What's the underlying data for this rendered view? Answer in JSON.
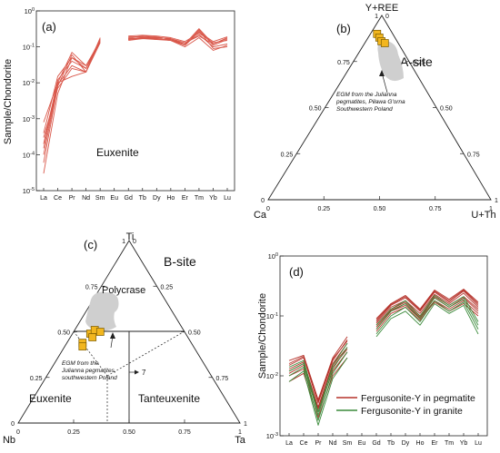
{
  "chart_data": [
    {
      "type": "line",
      "panel_label": "(a)",
      "ylabel": "Sample/Chondorite",
      "annotation": "Euxenite",
      "categories": [
        "La",
        "Ce",
        "Pr",
        "Nd",
        "Sm",
        "Eu",
        "Gd",
        "Tb",
        "Dy",
        "Ho",
        "Er",
        "Tm",
        "Yb",
        "Lu"
      ],
      "yscale": "log",
      "ylim": [
        1e-05,
        1
      ],
      "ytick_labels": [
        "10^-5",
        "10^-4",
        "10^-3",
        "10^-2",
        "10^-1",
        "10^0"
      ],
      "series": [
        {
          "values": [
            3e-05,
            0.005,
            0.05,
            0.03,
            0.14,
            null,
            0.16,
            0.17,
            0.16,
            0.15,
            0.12,
            0.3,
            0.11,
            0.16
          ]
        },
        {
          "values": [
            6e-05,
            0.008,
            0.06,
            0.02,
            0.15,
            null,
            0.17,
            0.18,
            0.17,
            0.15,
            0.11,
            0.26,
            0.14,
            0.19
          ]
        },
        {
          "values": [
            0.0001,
            0.009,
            0.03,
            0.02,
            0.16,
            null,
            0.18,
            0.2,
            0.19,
            0.16,
            0.12,
            0.22,
            0.1,
            0.12
          ]
        },
        {
          "values": [
            0.0002,
            0.012,
            0.04,
            0.025,
            0.17,
            null,
            0.19,
            0.19,
            0.18,
            0.17,
            0.13,
            0.2,
            0.12,
            0.17
          ]
        },
        {
          "values": [
            0.0004,
            0.015,
            0.05,
            0.025,
            0.14,
            null,
            0.16,
            0.18,
            0.16,
            0.16,
            0.11,
            0.28,
            0.09,
            0.1
          ]
        },
        {
          "values": [
            0.0008,
            0.01,
            0.015,
            0.02,
            0.13,
            null,
            0.15,
            0.17,
            0.17,
            0.15,
            0.1,
            0.18,
            0.08,
            0.11
          ]
        },
        {
          "values": [
            0.0003,
            0.007,
            0.025,
            0.02,
            0.18,
            null,
            0.2,
            0.21,
            0.2,
            0.18,
            0.14,
            0.24,
            0.13,
            0.15
          ]
        },
        {
          "values": [
            0.00015,
            0.01,
            0.07,
            0.03,
            0.15,
            null,
            0.17,
            0.18,
            0.18,
            0.17,
            0.12,
            0.32,
            0.12,
            0.18
          ]
        }
      ]
    },
    {
      "type": "ternary",
      "panel_label": "(b)",
      "title": "A-site",
      "vertices": {
        "top": "Y+REE",
        "left": "Ca",
        "right": "U+Th"
      },
      "tick_labels": [
        "0",
        "0.25",
        "0.50",
        "0.75",
        "1"
      ],
      "annotation": [
        "EGM from the Julianna",
        "pegmatites, Piława G'orna",
        "Southwestern Poland"
      ],
      "points": [
        {
          "top": 0.9,
          "left": 0.07,
          "right": 0.03
        },
        {
          "top": 0.88,
          "left": 0.07,
          "right": 0.05
        },
        {
          "top": 0.86,
          "left": 0.07,
          "right": 0.07
        },
        {
          "top": 0.85,
          "left": 0.06,
          "right": 0.09
        }
      ]
    },
    {
      "type": "ternary",
      "panel_label": "(c)",
      "title": "B-site",
      "vertices": {
        "top": "Ti",
        "left": "Nb",
        "right": "Ta"
      },
      "tick_labels": [
        "0",
        "0.25",
        "0.50",
        "0.75",
        "1"
      ],
      "fields": [
        "Polycrase",
        "Euxenite",
        "Tanteuxenite"
      ],
      "annotation": [
        "EGM from the",
        "Julianna pegmatites,",
        "southwestern Poland"
      ],
      "arrow_label": "7",
      "points": [
        {
          "top": 0.49,
          "left": 0.43,
          "right": 0.08
        },
        {
          "top": 0.51,
          "left": 0.4,
          "right": 0.09
        },
        {
          "top": 0.47,
          "left": 0.43,
          "right": 0.1
        },
        {
          "top": 0.5,
          "left": 0.38,
          "right": 0.12
        },
        {
          "top": 0.44,
          "left": 0.49,
          "right": 0.07
        },
        {
          "top": 0.42,
          "left": 0.5,
          "right": 0.08
        }
      ]
    },
    {
      "type": "line",
      "panel_label": "(d)",
      "ylabel": "Sample/Chondorite",
      "categories": [
        "La",
        "Ce",
        "Pr",
        "Nd",
        "Sm",
        "Eu",
        "Gd",
        "Tb",
        "Dy",
        "Ho",
        "Er",
        "Tm",
        "Yb",
        "Lu"
      ],
      "yscale": "log",
      "ylim": [
        0.001,
        1
      ],
      "ytick_labels": [
        "10^-3",
        "10^-2",
        "10^-1",
        "10^0"
      ],
      "legend": [
        "Fergusonite-Y in pegmatite",
        "Fergusonite-Y in granite"
      ],
      "legend_position": "bottom-right",
      "series": [
        {
          "name": "Fergusonite-Y in pegmatite",
          "group": "pegmatite",
          "values": [
            0.012,
            0.016,
            0.003,
            0.015,
            0.03,
            null,
            0.07,
            0.13,
            0.17,
            0.1,
            0.21,
            0.15,
            0.21,
            0.13
          ]
        },
        {
          "group": "pegmatite",
          "values": [
            0.015,
            0.02,
            0.0035,
            0.018,
            0.04,
            null,
            0.08,
            0.15,
            0.2,
            0.12,
            0.25,
            0.17,
            0.26,
            0.15
          ]
        },
        {
          "group": "pegmatite",
          "values": [
            0.01,
            0.013,
            0.0025,
            0.012,
            0.025,
            null,
            0.06,
            0.12,
            0.15,
            0.09,
            0.18,
            0.13,
            0.18,
            0.11
          ]
        },
        {
          "group": "pegmatite",
          "values": [
            0.018,
            0.022,
            0.004,
            0.02,
            0.045,
            null,
            0.09,
            0.16,
            0.22,
            0.13,
            0.27,
            0.19,
            0.28,
            0.17
          ]
        },
        {
          "group": "pegmatite",
          "values": [
            0.008,
            0.011,
            0.002,
            0.01,
            0.02,
            null,
            0.055,
            0.11,
            0.14,
            0.085,
            0.17,
            0.12,
            0.16,
            0.1
          ]
        },
        {
          "group": "pegmatite",
          "values": [
            0.013,
            0.017,
            0.003,
            0.016,
            0.035,
            null,
            0.075,
            0.14,
            0.18,
            0.11,
            0.23,
            0.16,
            0.24,
            0.14
          ]
        },
        {
          "group": "pegmatite",
          "values": [
            0.011,
            0.015,
            0.0028,
            0.014,
            0.028,
            null,
            0.065,
            0.125,
            0.16,
            0.095,
            0.2,
            0.14,
            0.2,
            0.12
          ]
        },
        {
          "group": "pegmatite",
          "values": [
            0.016,
            0.021,
            0.0038,
            0.019,
            0.038,
            null,
            0.085,
            0.155,
            0.21,
            0.125,
            0.26,
            0.18,
            0.27,
            0.16
          ]
        },
        {
          "name": "Fergusonite-Y in granite",
          "group": "granite",
          "values": [
            0.01,
            0.014,
            0.0018,
            0.011,
            0.025,
            null,
            0.05,
            0.1,
            0.14,
            0.08,
            0.18,
            0.12,
            0.17,
            0.06
          ]
        },
        {
          "group": "granite",
          "values": [
            0.012,
            0.016,
            0.0022,
            0.013,
            0.03,
            null,
            0.06,
            0.12,
            0.16,
            0.09,
            0.2,
            0.14,
            0.19,
            0.07
          ]
        },
        {
          "group": "granite",
          "values": [
            0.008,
            0.012,
            0.0015,
            0.009,
            0.02,
            null,
            0.045,
            0.09,
            0.12,
            0.07,
            0.16,
            0.11,
            0.15,
            0.05
          ]
        },
        {
          "group": "granite",
          "values": [
            0.014,
            0.018,
            0.0025,
            0.015,
            0.035,
            null,
            0.07,
            0.13,
            0.18,
            0.1,
            0.22,
            0.15,
            0.21,
            0.08
          ]
        }
      ]
    }
  ],
  "colors": {
    "euxenite_lines": "#d9574a",
    "pegmatite": "#b5322a",
    "granite": "#3a8a3a",
    "points_fill": "#f2b61e",
    "points_stroke": "#7a5a00",
    "field_gray": "#cfcfcf"
  }
}
